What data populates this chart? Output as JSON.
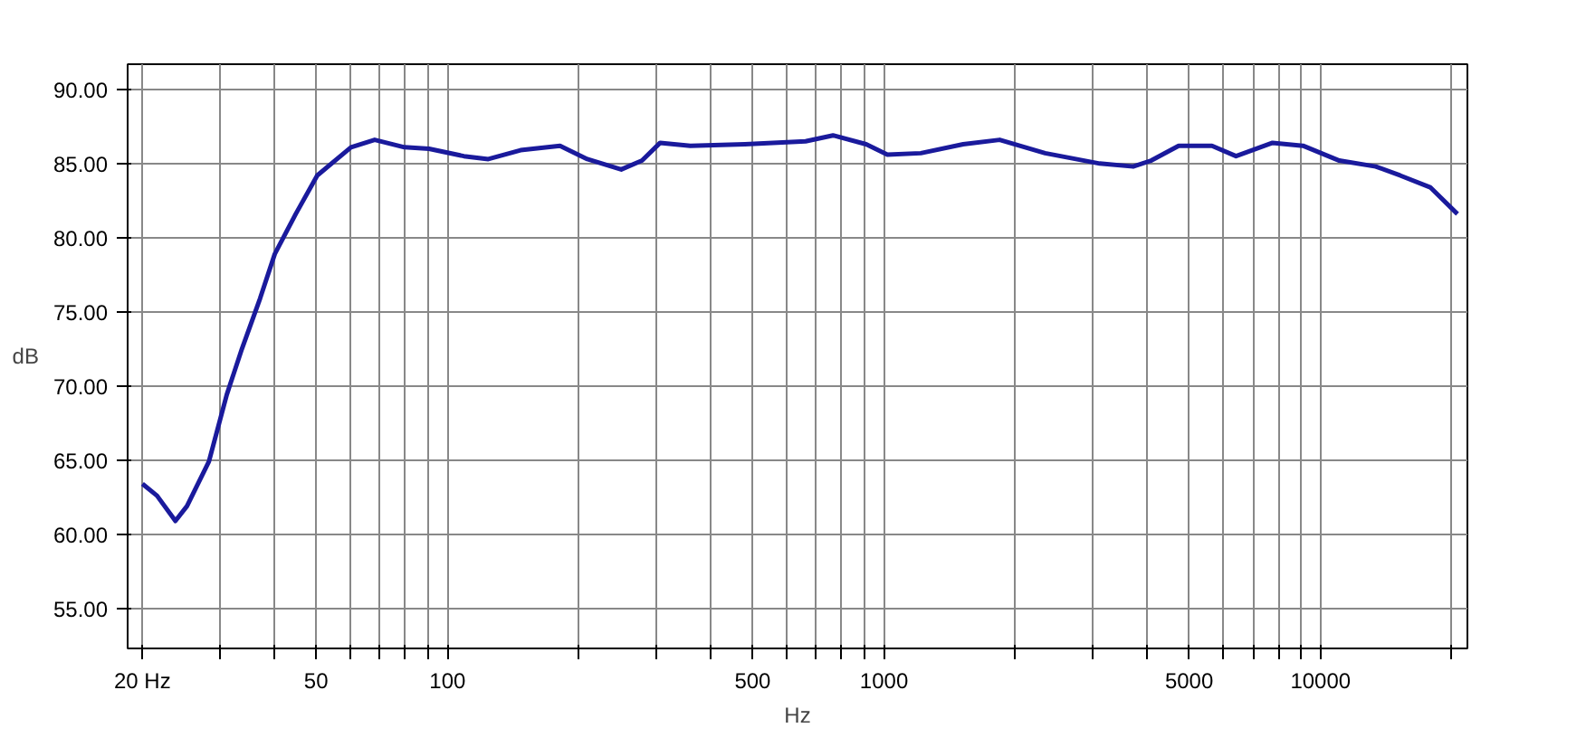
{
  "chart_data": {
    "type": "line",
    "xlabel": "Hz",
    "ylabel": "dB",
    "log": "x",
    "grid": true,
    "line_style": "solid",
    "xlim": [
      18.5,
      21700
    ],
    "ylim": [
      52.3,
      91.7
    ],
    "xticks": [
      {
        "value": 20,
        "label": "20 Hz"
      },
      {
        "value": 30,
        "label": null
      },
      {
        "value": 40,
        "label": null
      },
      50,
      {
        "value": 60,
        "label": null
      },
      {
        "value": 70,
        "label": null
      },
      {
        "value": 80,
        "label": null
      },
      {
        "value": 90,
        "label": null
      },
      100,
      {
        "value": 200,
        "label": null
      },
      {
        "value": 300,
        "label": null
      },
      {
        "value": 400,
        "label": null
      },
      500,
      {
        "value": 600,
        "label": null
      },
      {
        "value": 700,
        "label": null
      },
      {
        "value": 800,
        "label": null
      },
      {
        "value": 900,
        "label": null
      },
      1000,
      {
        "value": 2000,
        "label": null
      },
      {
        "value": 3000,
        "label": null
      },
      {
        "value": 4000,
        "label": null
      },
      5000,
      {
        "value": 6000,
        "label": null
      },
      {
        "value": 7000,
        "label": null
      },
      {
        "value": 8000,
        "label": null
      },
      {
        "value": 9000,
        "label": null
      },
      10000,
      {
        "value": 20000,
        "label": null
      }
    ],
    "yticks": [
      {
        "value": 55,
        "label": "55.00"
      },
      {
        "value": 60,
        "label": "60.00"
      },
      {
        "value": 65,
        "label": "65.00"
      },
      {
        "value": 70,
        "label": "70.00"
      },
      {
        "value": 75,
        "label": "75.00"
      },
      {
        "value": 80,
        "label": "80.00"
      },
      {
        "value": 85,
        "label": "85.00"
      },
      {
        "value": 90,
        "label": "90.00"
      }
    ],
    "series": [
      {
        "color": "#1a1a9c",
        "x": [
          20,
          21.6,
          23.8,
          25.3,
          28.4,
          31.2,
          33.8,
          37.2,
          40.2,
          44.9,
          50.3,
          60.1,
          68.1,
          79.7,
          90.7,
          109,
          124,
          147,
          181,
          209,
          250,
          279,
          307,
          360,
          480,
          661,
          764,
          910,
          1018,
          1214,
          1518,
          1840,
          2339,
          3120,
          3722,
          4093,
          4731,
          5640,
          6403,
          7764,
          9116,
          11040,
          13380,
          15210,
          17830,
          20590
        ],
        "values": [
          63.4,
          62.6,
          60.9,
          61.9,
          64.9,
          69.4,
          72.5,
          75.9,
          78.9,
          81.6,
          84.2,
          86.1,
          86.6,
          86.1,
          86.0,
          85.5,
          85.3,
          85.9,
          86.2,
          85.3,
          84.6,
          85.2,
          86.4,
          86.2,
          86.3,
          86.5,
          86.9,
          86.3,
          85.6,
          85.7,
          86.3,
          86.6,
          85.7,
          85.0,
          84.8,
          85.2,
          86.2,
          86.2,
          85.5,
          86.4,
          86.2,
          85.2,
          84.8,
          84.2,
          83.4,
          81.6
        ]
      }
    ]
  }
}
